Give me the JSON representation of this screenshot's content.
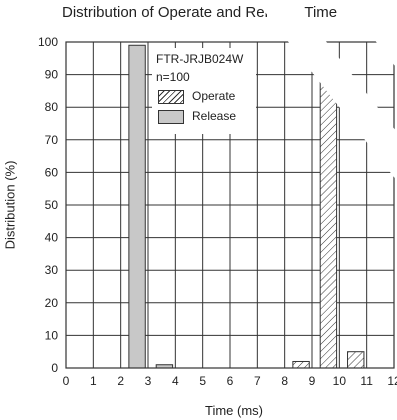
{
  "chart_data": {
    "type": "bar",
    "title": "Distribution of Operate and Release Time",
    "xlabel": "Time (ms)",
    "ylabel": "Distribution (%)",
    "xlim": [
      0,
      12
    ],
    "ylim": [
      0,
      100
    ],
    "xticks": [
      0,
      1,
      2,
      3,
      4,
      5,
      6,
      7,
      8,
      9,
      10,
      11,
      12
    ],
    "yticks": [
      0,
      10,
      20,
      30,
      40,
      50,
      60,
      70,
      80,
      90,
      100
    ],
    "grid": true,
    "legend": {
      "placement": "top-center",
      "model": "FTR-JRJB024W",
      "sample": "n=100",
      "entries": [
        "Operate",
        "Release"
      ]
    },
    "series": [
      {
        "name": "Release",
        "fill": "solid gray",
        "color": "#c8c8c8",
        "bars": [
          {
            "x_start": 2.3,
            "x_end": 2.9,
            "value": 99
          },
          {
            "x_start": 3.3,
            "x_end": 3.9,
            "value": 1
          }
        ]
      },
      {
        "name": "Operate",
        "fill": "diagonal hatch",
        "color": "#ffffff",
        "bars": [
          {
            "x_start": 8.3,
            "x_end": 8.9,
            "value": 2
          },
          {
            "x_start": 9.3,
            "x_end": 9.9,
            "value": 93
          },
          {
            "x_start": 10.3,
            "x_end": 10.9,
            "value": 5
          }
        ]
      }
    ]
  }
}
